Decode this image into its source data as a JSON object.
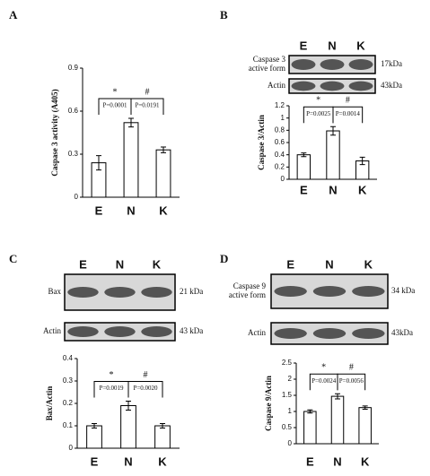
{
  "chart_data": [
    {
      "type": "bar",
      "panel": "A",
      "y_label": "Caspase 3 activity (A405)",
      "categories": [
        "E",
        "N",
        "K"
      ],
      "values": [
        0.24,
        0.52,
        0.33
      ],
      "errors": [
        0.05,
        0.03,
        0.02
      ],
      "ylim": [
        0,
        0.9
      ],
      "yticks": [
        0,
        0.3,
        0.6,
        0.9
      ],
      "annotations": [
        {
          "symbol": "*",
          "text": "P=0.0001"
        },
        {
          "symbol": "#",
          "text": "P=0.0191"
        }
      ]
    },
    {
      "type": "bar",
      "panel": "B",
      "y_label": "Caspase 3/Actin",
      "categories": [
        "E",
        "N",
        "K"
      ],
      "values": [
        0.4,
        0.79,
        0.3
      ],
      "errors": [
        0.03,
        0.07,
        0.06
      ],
      "ylim": [
        0,
        1.2
      ],
      "yticks": [
        0,
        0.2,
        0.4,
        0.6,
        0.8,
        1,
        1.2
      ],
      "annotations": [
        {
          "symbol": "*",
          "text": "P=0.0025"
        },
        {
          "symbol": "#",
          "text": "P=0.0014"
        }
      ],
      "blots": [
        {
          "label": [
            "Caspase 3",
            "active form"
          ],
          "size": "17kDa"
        },
        {
          "label": [
            "Actin"
          ],
          "size": "43kDa"
        }
      ]
    },
    {
      "type": "bar",
      "panel": "C",
      "y_label": "Bax/Actin",
      "categories": [
        "E",
        "N",
        "K"
      ],
      "values": [
        0.1,
        0.19,
        0.1
      ],
      "errors": [
        0.01,
        0.02,
        0.01
      ],
      "ylim": [
        0,
        0.4
      ],
      "yticks": [
        0,
        0.1,
        0.2,
        0.3,
        0.4
      ],
      "annotations": [
        {
          "symbol": "*",
          "text": "P=0.0019"
        },
        {
          "symbol": "#",
          "text": "P=0.0020"
        }
      ],
      "blots": [
        {
          "label": [
            "Bax"
          ],
          "size": "21 kDa"
        },
        {
          "label": [
            "Actin"
          ],
          "size": "43 kDa"
        }
      ]
    },
    {
      "type": "bar",
      "panel": "D",
      "y_label": "Caspase 9/Actin",
      "categories": [
        "E",
        "N",
        "K"
      ],
      "values": [
        1.0,
        1.47,
        1.12
      ],
      "errors": [
        0.05,
        0.08,
        0.05
      ],
      "ylim": [
        0,
        2.5
      ],
      "yticks": [
        0,
        0.5,
        1,
        1.5,
        2,
        2.5
      ],
      "annotations": [
        {
          "symbol": "*",
          "text": "P=0.0024"
        },
        {
          "symbol": "#",
          "text": "P=0.0056"
        }
      ],
      "blots": [
        {
          "label": [
            "Caspase 9",
            "active form"
          ],
          "size": "34 kDa"
        },
        {
          "label": [
            "Actin"
          ],
          "size": "43kDa"
        }
      ]
    }
  ]
}
